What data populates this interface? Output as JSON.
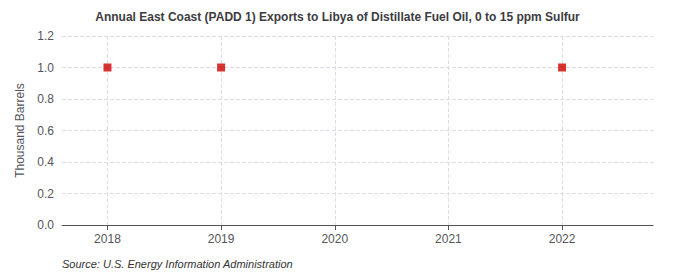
{
  "chart_data": {
    "type": "scatter",
    "title": "Annual East Coast (PADD 1) Exports to Libya of Distillate Fuel Oil, 0 to 15 ppm Sulfur",
    "ylabel": "Thousand Barrels",
    "source": "Source: U.S. Energy Information Administration",
    "x": [
      2018,
      2019,
      2022
    ],
    "values": [
      1.0,
      1.0,
      1.0
    ],
    "color": "#cc0000",
    "marker": "square",
    "xlim": [
      2017.6,
      2022.8
    ],
    "xticks": [
      2018,
      2019,
      2020,
      2021,
      2022
    ],
    "ylim": [
      0.0,
      1.2
    ],
    "yticks": [
      {
        "value": 0,
        "label": "0.0"
      },
      0.2,
      0.4,
      0.6,
      0.8,
      {
        "value": 1,
        "label": "1.0"
      },
      1.2
    ],
    "grid": true
  }
}
